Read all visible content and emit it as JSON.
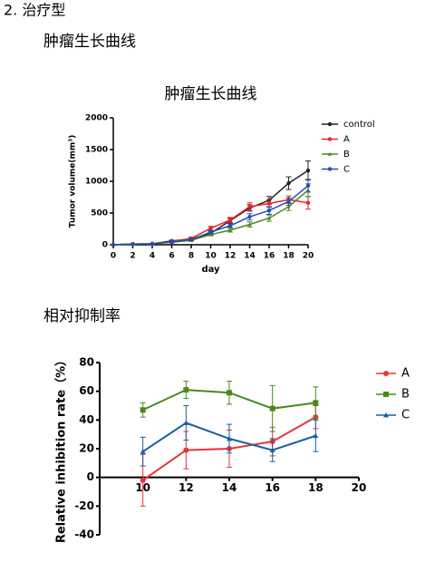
{
  "heading": "2. 治疗型",
  "section1": "肿瘤生长曲线",
  "section2": "相对抑制率",
  "chart_data": [
    {
      "type": "line",
      "title": "肿瘤生长曲线",
      "x_label": "day",
      "y_label": "Tumor volume(mm³)",
      "x": [
        0,
        2,
        4,
        6,
        8,
        10,
        12,
        14,
        16,
        18,
        20
      ],
      "xlim": [
        0,
        20
      ],
      "xticks": [
        0,
        2,
        4,
        6,
        8,
        10,
        12,
        14,
        16,
        18,
        20
      ],
      "ylim": [
        0,
        2000
      ],
      "yticks": [
        0,
        500,
        1000,
        1500,
        2000
      ],
      "series": [
        {
          "name": "control",
          "color": "#222222",
          "marker": "circle",
          "values": [
            0,
            10,
            15,
            60,
            90,
            180,
            380,
            580,
            700,
            970,
            1170
          ],
          "errors": [
            0,
            5,
            5,
            10,
            15,
            30,
            40,
            50,
            60,
            100,
            150
          ]
        },
        {
          "name": "A",
          "color": "#e8232a",
          "marker": "circle",
          "values": [
            0,
            10,
            15,
            50,
            100,
            260,
            390,
            600,
            650,
            710,
            660
          ],
          "errors": [
            0,
            5,
            5,
            10,
            20,
            30,
            40,
            60,
            60,
            60,
            100
          ]
        },
        {
          "name": "B",
          "color": "#4a8a1c",
          "marker": "triangle",
          "values": [
            0,
            10,
            15,
            40,
            70,
            160,
            230,
            320,
            420,
            600,
            860
          ],
          "errors": [
            0,
            5,
            5,
            10,
            15,
            20,
            30,
            40,
            50,
            60,
            100
          ]
        },
        {
          "name": "C",
          "color": "#1f4fb8",
          "marker": "circle",
          "values": [
            0,
            10,
            15,
            45,
            80,
            200,
            300,
            440,
            540,
            680,
            930
          ],
          "errors": [
            0,
            5,
            5,
            10,
            15,
            25,
            30,
            50,
            60,
            60,
            100
          ]
        }
      ]
    },
    {
      "type": "line",
      "y_label": "Relative inhibition rate（%）",
      "x": [
        10,
        12,
        14,
        16,
        18
      ],
      "xlim": [
        8,
        20
      ],
      "xticks": [
        10,
        12,
        14,
        16,
        18,
        20
      ],
      "ylim": [
        -40,
        80
      ],
      "yticks": [
        -40,
        -20,
        0,
        20,
        40,
        60,
        80
      ],
      "series": [
        {
          "name": "A",
          "color": "#e8333a",
          "marker": "circle",
          "values": [
            -2,
            19,
            20,
            25,
            42
          ],
          "errors": [
            18,
            13,
            13,
            10,
            8
          ]
        },
        {
          "name": "B",
          "color": "#4a8a1c",
          "marker": "square",
          "values": [
            47,
            61,
            59,
            48,
            52
          ],
          "errors": [
            5,
            6,
            8,
            16,
            11
          ]
        },
        {
          "name": "C",
          "color": "#1a5fa0",
          "marker": "triangle",
          "values": [
            18,
            38,
            27,
            19,
            29
          ],
          "errors": [
            10,
            12,
            10,
            8,
            11
          ]
        }
      ]
    }
  ]
}
